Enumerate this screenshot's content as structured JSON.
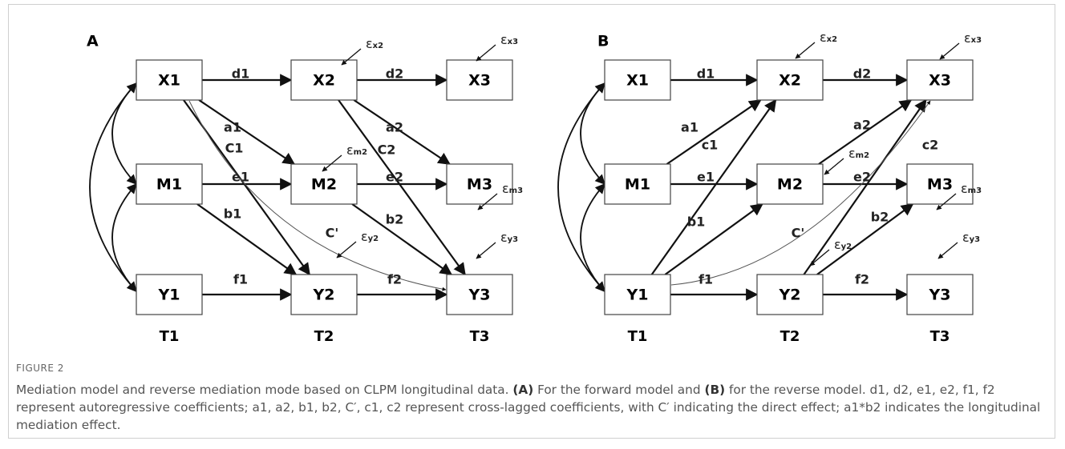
{
  "panels": [
    {
      "label": "A",
      "nodes": [
        "X1",
        "X2",
        "X3",
        "M1",
        "M2",
        "M3",
        "Y1",
        "Y2",
        "Y3"
      ],
      "edge_labels": [
        "d1",
        "d2",
        "a1",
        "C1",
        "a2",
        "C2",
        "e1",
        "e2",
        "b1",
        "b2",
        "C'",
        "f1",
        "f2"
      ],
      "errors": [
        {
          "symbol": "ε",
          "sub": "x2"
        },
        {
          "symbol": "ε",
          "sub": "x3"
        },
        {
          "symbol": "ε",
          "sub": "m2"
        },
        {
          "symbol": "ε",
          "sub": "m3"
        },
        {
          "symbol": "ε",
          "sub": "y2"
        },
        {
          "symbol": "ε",
          "sub": "y3"
        }
      ],
      "times": [
        "T1",
        "T2",
        "T3"
      ]
    },
    {
      "label": "B",
      "nodes": [
        "X1",
        "X2",
        "X3",
        "M1",
        "M2",
        "M3",
        "Y1",
        "Y2",
        "Y3"
      ],
      "edge_labels": [
        "d1",
        "d2",
        "a1",
        "c1",
        "a2",
        "c2",
        "e1",
        "e2",
        "b1",
        "b2",
        "C'",
        "f1",
        "f2"
      ],
      "errors": [
        {
          "symbol": "ε",
          "sub": "x2"
        },
        {
          "symbol": "ε",
          "sub": "x3"
        },
        {
          "symbol": "ε",
          "sub": "m2"
        },
        {
          "symbol": "ε",
          "sub": "m3"
        },
        {
          "symbol": "ε",
          "sub": "y2"
        },
        {
          "symbol": "ε",
          "sub": "y3"
        }
      ],
      "times": [
        "T1",
        "T2",
        "T3"
      ]
    }
  ],
  "caption": {
    "figure": "FIGURE 2",
    "parts": [
      "Mediation model and reverse mediation mode based on CLPM longitudinal data. ",
      "(A)",
      " For the forward model and ",
      "(B)",
      " for the reverse model. d1, d2, e1, e2, f1, f2 represent autoregressive coefficients; a1, a2, b1, b2, C′, c1, c2 represent cross-lagged coefficients, with C′ indicating the direct effect; a1*b2 indicates the longitudinal mediation effect."
    ]
  }
}
